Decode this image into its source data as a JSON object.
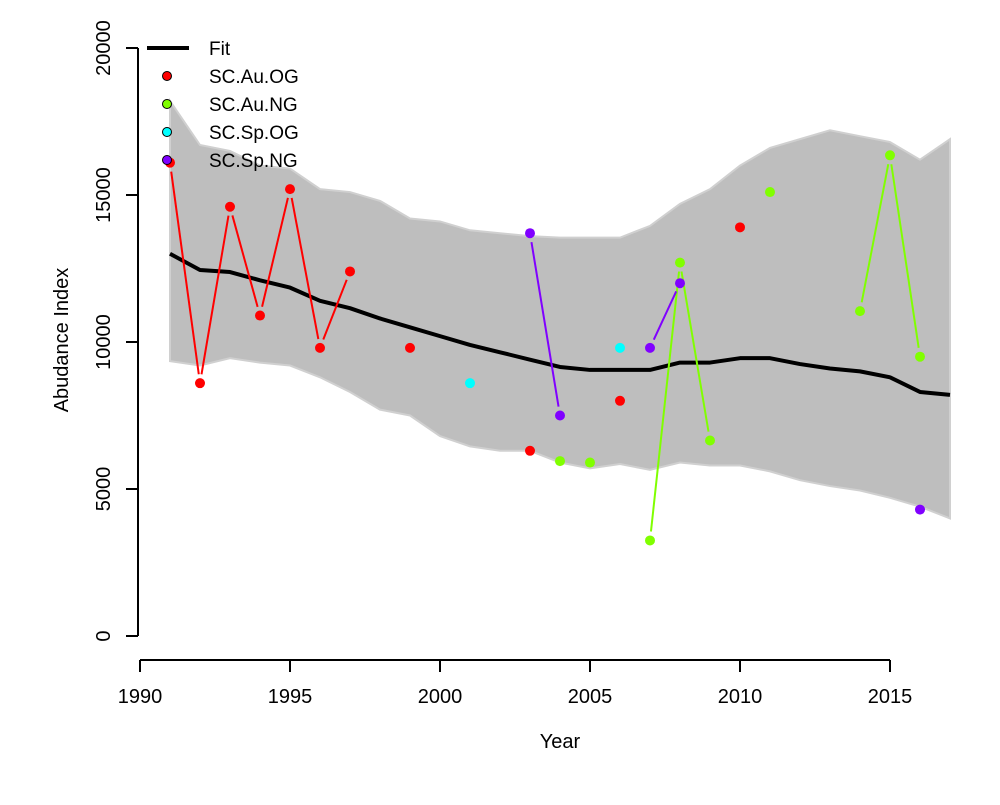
{
  "chart_data": {
    "type": "scatter",
    "title": "",
    "xlabel": "Year",
    "ylabel": "Abudance Index",
    "xlim": [
      1990,
      2017
    ],
    "ylim": [
      0,
      20000
    ],
    "x_ticks": [
      1990,
      1995,
      2000,
      2005,
      2010,
      2015
    ],
    "y_ticks": [
      0,
      5000,
      10000,
      15000,
      20000
    ],
    "grid": false,
    "legend_position": "top-left",
    "fit": {
      "name": "Fit",
      "color": "#000000",
      "x": [
        1991,
        1992,
        1993,
        1994,
        1995,
        1996,
        1997,
        1998,
        1999,
        2000,
        2001,
        2002,
        2003,
        2004,
        2005,
        2006,
        2007,
        2008,
        2009,
        2010,
        2011,
        2012,
        2013,
        2014,
        2015,
        2016,
        2017
      ],
      "values": [
        13000,
        12450,
        12380,
        12100,
        11850,
        11400,
        11150,
        10800,
        10500,
        10200,
        9900,
        9650,
        9400,
        9150,
        9050,
        9050,
        9050,
        9300,
        9300,
        9450,
        9450,
        9250,
        9100,
        9000,
        8800,
        8300,
        8200
      ],
      "lower": [
        9350,
        9200,
        9450,
        9300,
        9200,
        8800,
        8300,
        7700,
        7500,
        6800,
        6450,
        6300,
        6300,
        5900,
        5700,
        5850,
        5650,
        5900,
        5800,
        5800,
        5600,
        5300,
        5100,
        4950,
        4700,
        4400,
        4000
      ],
      "upper": [
        18200,
        16700,
        16500,
        16000,
        15900,
        15200,
        15100,
        14800,
        14200,
        14100,
        13800,
        13700,
        13600,
        13550,
        13550,
        13550,
        13950,
        14700,
        15200,
        16000,
        16600,
        16900,
        17200,
        17000,
        16800,
        16200,
        16900
      ],
      "band_color": "#bebebe"
    },
    "series": [
      {
        "name": "SC.Au.OG",
        "color": "#ff0000",
        "points": [
          [
            1991,
            16100
          ],
          [
            1992,
            8600
          ],
          [
            1993,
            14600
          ],
          [
            1994,
            10900
          ],
          [
            1995,
            15200
          ],
          [
            1996,
            9800
          ],
          [
            1997,
            12400
          ],
          [
            1999,
            9800
          ],
          [
            2003,
            6300
          ],
          [
            2006,
            8000
          ],
          [
            2010,
            13900
          ]
        ],
        "segments": [
          [
            1991,
            1997
          ]
        ]
      },
      {
        "name": "SC.Au.NG",
        "color": "#80ff00",
        "points": [
          [
            2004,
            5950
          ],
          [
            2005,
            5900
          ],
          [
            2007,
            3250
          ],
          [
            2008,
            12700
          ],
          [
            2009,
            6650
          ],
          [
            2011,
            15100
          ],
          [
            2014,
            11050
          ],
          [
            2015,
            16350
          ],
          [
            2016,
            9500
          ]
        ],
        "segments": [
          [
            2007,
            2009
          ],
          [
            2014,
            2016
          ]
        ]
      },
      {
        "name": "SC.Sp.OG",
        "color": "#00ffff",
        "points": [
          [
            2001,
            8600
          ],
          [
            2006,
            9800
          ]
        ],
        "segments": []
      },
      {
        "name": "SC.Sp.NG",
        "color": "#8000ff",
        "points": [
          [
            2003,
            13700
          ],
          [
            2004,
            7500
          ],
          [
            2007,
            9800
          ],
          [
            2008,
            12000
          ],
          [
            2016,
            4300
          ]
        ],
        "segments": [
          [
            2003,
            2004
          ],
          [
            2007,
            2008
          ]
        ]
      }
    ]
  }
}
